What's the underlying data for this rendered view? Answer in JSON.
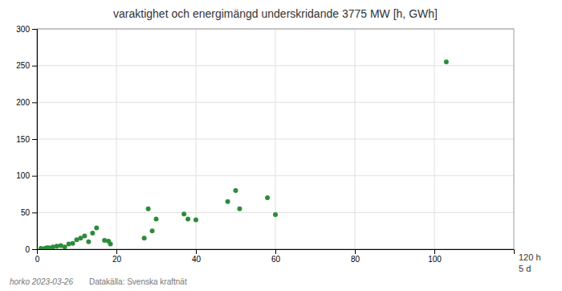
{
  "chart_data": {
    "type": "scatter",
    "title": "varaktighet och energimängd underskridande 3775 MW [h, GWh]",
    "x": [
      1,
      2,
      2.5,
      3,
      4,
      5,
      6,
      7,
      8,
      9,
      10,
      11,
      12,
      13,
      14,
      15,
      17,
      18,
      18.5,
      27,
      28,
      29,
      30,
      37,
      38,
      40,
      48,
      50,
      51,
      58,
      60,
      103
    ],
    "values": [
      1,
      1,
      2,
      2,
      3,
      4,
      5,
      3,
      7,
      8,
      13,
      15,
      18,
      10,
      22,
      29,
      12,
      11,
      7,
      15,
      55,
      25,
      41,
      48,
      41,
      40,
      65,
      80,
      55,
      70,
      47,
      255
    ],
    "color": "#2e8b3a",
    "xlim": [
      0,
      120
    ],
    "ylim": [
      0,
      300
    ],
    "xticks": [
      0,
      20,
      40,
      60,
      80,
      100
    ],
    "yticks": [
      0,
      50,
      100,
      150,
      200,
      250,
      300
    ],
    "grid": true,
    "annotations": [
      "120 h",
      "5 d",
      "horko 2023-03-26",
      "Datakälla: Svenska kraftnät"
    ]
  }
}
